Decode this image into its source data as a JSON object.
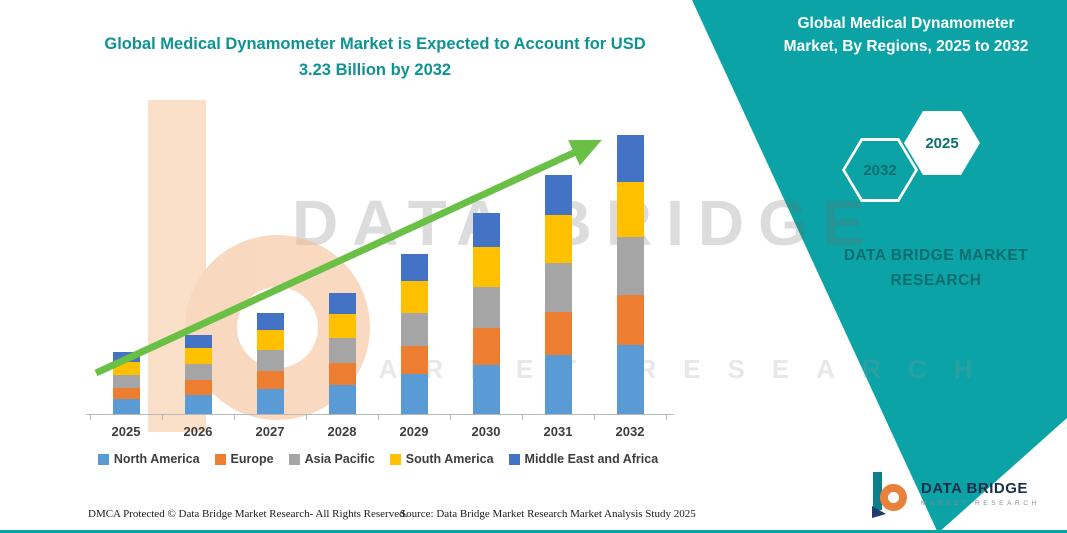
{
  "header": {
    "chart_title": "Global Medical Dynamometer Market is Expected to Account for USD 3.23 Billion by 2032",
    "panel_title": "Global Medical Dynamometer Market, By Regions, 2025 to 2032"
  },
  "panel": {
    "hexagon_years": [
      "2032",
      "2025"
    ],
    "brand_caption": "DATA BRIDGE MARKET RESEARCH",
    "accent_color": "#0ba3a5"
  },
  "watermark": {
    "line1": "DATA BRIDGE",
    "line2": "MARKET RESEARCH"
  },
  "footer": {
    "dmca": "DMCA Protected © Data Bridge Market Research-  All Rights Reserved.",
    "source": "Source: Data Bridge Market Research  Market Analysis Study 2025",
    "logo_brand": "DATA BRIDGE",
    "logo_sub": "MARKET RESEARCH"
  },
  "chart_data": {
    "type": "bar",
    "stacked": true,
    "title": "Global Medical Dynamometer Market is Expected to Account for USD 3.23 Billion by 2032",
    "xlabel": "",
    "ylabel": "",
    "unit": "USD Billion",
    "grid": false,
    "legend_position": "bottom",
    "ylim": [
      0,
      3.5
    ],
    "annotation": "USD 3.23 Billion by 2032",
    "arrow_color": "#6abf45",
    "categories": [
      "2025",
      "2026",
      "2027",
      "2028",
      "2029",
      "2030",
      "2031",
      "2032"
    ],
    "totals": [
      0.73,
      0.92,
      1.18,
      1.41,
      1.86,
      2.33,
      2.77,
      3.23
    ],
    "series": [
      {
        "name": "North America",
        "color": "#5b9bd5",
        "values": [
          0.18,
          0.23,
          0.3,
          0.35,
          0.47,
          0.58,
          0.69,
          0.81
        ]
      },
      {
        "name": "Europe",
        "color": "#ed7d31",
        "values": [
          0.13,
          0.17,
          0.21,
          0.25,
          0.33,
          0.42,
          0.5,
          0.58
        ]
      },
      {
        "name": "Asia Pacific",
        "color": "#a5a5a5",
        "values": [
          0.15,
          0.19,
          0.24,
          0.29,
          0.38,
          0.48,
          0.57,
          0.66
        ]
      },
      {
        "name": "South America",
        "color": "#ffc000",
        "values": [
          0.15,
          0.18,
          0.23,
          0.28,
          0.37,
          0.46,
          0.55,
          0.64
        ]
      },
      {
        "name": "Middle East and Africa",
        "color": "#4472c4",
        "values": [
          0.12,
          0.15,
          0.2,
          0.24,
          0.31,
          0.39,
          0.46,
          0.54
        ]
      }
    ]
  }
}
